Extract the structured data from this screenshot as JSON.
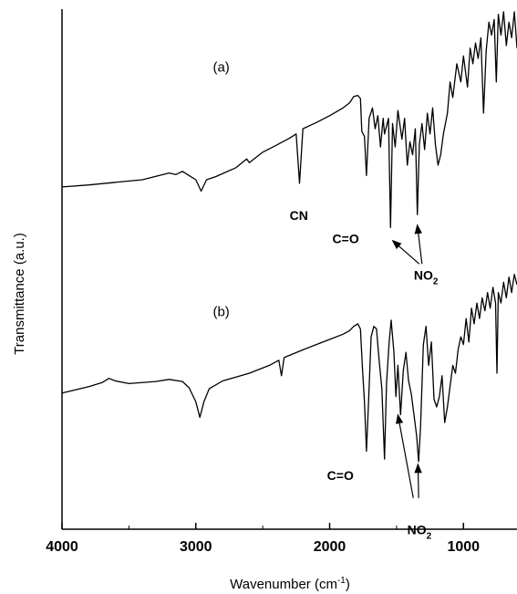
{
  "chart_data": {
    "type": "line",
    "title": "",
    "xlabel": "Wavenumber (cm",
    "xlabel_sup": "-1",
    "xlabel_close": ")",
    "ylabel": "Transmittance (a.u.)",
    "xlim": [
      4000,
      600
    ],
    "ylim": [
      0,
      10
    ],
    "x_reversed": true,
    "x_ticks": [
      4000,
      3000,
      2000,
      1000
    ],
    "y_ticks_shown": false,
    "line_color": "#000000",
    "series": [
      {
        "label": "(a)",
        "label_position": [
          2810,
          8.8
        ],
        "points": [
          [
            4000,
            6.58
          ],
          [
            3800,
            6.62
          ],
          [
            3600,
            6.67
          ],
          [
            3400,
            6.72
          ],
          [
            3200,
            6.85
          ],
          [
            3150,
            6.82
          ],
          [
            3100,
            6.88
          ],
          [
            3050,
            6.8
          ],
          [
            3000,
            6.72
          ],
          [
            2960,
            6.5
          ],
          [
            2920,
            6.72
          ],
          [
            2850,
            6.78
          ],
          [
            2700,
            6.95
          ],
          [
            2620,
            7.12
          ],
          [
            2600,
            7.05
          ],
          [
            2500,
            7.25
          ],
          [
            2400,
            7.38
          ],
          [
            2300,
            7.52
          ],
          [
            2250,
            7.6
          ],
          [
            2225,
            6.65
          ],
          [
            2200,
            7.7
          ],
          [
            2100,
            7.82
          ],
          [
            2000,
            7.95
          ],
          [
            1900,
            8.1
          ],
          [
            1850,
            8.2
          ],
          [
            1820,
            8.32
          ],
          [
            1790,
            8.34
          ],
          [
            1770,
            8.28
          ],
          [
            1760,
            7.65
          ],
          [
            1740,
            7.55
          ],
          [
            1725,
            6.8
          ],
          [
            1705,
            7.9
          ],
          [
            1680,
            8.1
          ],
          [
            1660,
            7.7
          ],
          [
            1640,
            7.95
          ],
          [
            1620,
            7.35
          ],
          [
            1600,
            7.9
          ],
          [
            1590,
            7.6
          ],
          [
            1560,
            7.9
          ],
          [
            1545,
            5.8
          ],
          [
            1530,
            7.8
          ],
          [
            1510,
            7.35
          ],
          [
            1490,
            8.05
          ],
          [
            1460,
            7.5
          ],
          [
            1440,
            7.9
          ],
          [
            1420,
            7.0
          ],
          [
            1400,
            7.45
          ],
          [
            1380,
            7.2
          ],
          [
            1360,
            7.7
          ],
          [
            1345,
            6.05
          ],
          [
            1330,
            7.4
          ],
          [
            1310,
            7.8
          ],
          [
            1290,
            7.3
          ],
          [
            1270,
            8.0
          ],
          [
            1250,
            7.6
          ],
          [
            1230,
            8.1
          ],
          [
            1210,
            7.4
          ],
          [
            1190,
            7.0
          ],
          [
            1170,
            7.2
          ],
          [
            1150,
            7.6
          ],
          [
            1120,
            8.0
          ],
          [
            1100,
            8.6
          ],
          [
            1080,
            8.3
          ],
          [
            1050,
            8.95
          ],
          [
            1020,
            8.6
          ],
          [
            1000,
            9.1
          ],
          [
            970,
            8.5
          ],
          [
            950,
            9.25
          ],
          [
            930,
            8.95
          ],
          [
            910,
            9.35
          ],
          [
            890,
            9.05
          ],
          [
            870,
            9.45
          ],
          [
            850,
            8.0
          ],
          [
            830,
            9.2
          ],
          [
            810,
            9.75
          ],
          [
            790,
            9.5
          ],
          [
            770,
            9.8
          ],
          [
            755,
            8.6
          ],
          [
            740,
            9.9
          ],
          [
            720,
            9.5
          ],
          [
            700,
            9.95
          ],
          [
            680,
            9.3
          ],
          [
            660,
            9.75
          ],
          [
            640,
            9.45
          ],
          [
            620,
            9.95
          ],
          [
            600,
            9.25
          ]
        ]
      },
      {
        "label": "(b)",
        "label_position": [
          2810,
          4.1
        ],
        "points": [
          [
            4000,
            2.62
          ],
          [
            3900,
            2.68
          ],
          [
            3800,
            2.74
          ],
          [
            3700,
            2.82
          ],
          [
            3650,
            2.9
          ],
          [
            3600,
            2.85
          ],
          [
            3500,
            2.8
          ],
          [
            3300,
            2.84
          ],
          [
            3200,
            2.88
          ],
          [
            3100,
            2.84
          ],
          [
            3050,
            2.72
          ],
          [
            3000,
            2.45
          ],
          [
            2970,
            2.15
          ],
          [
            2940,
            2.45
          ],
          [
            2900,
            2.7
          ],
          [
            2800,
            2.85
          ],
          [
            2600,
            3.0
          ],
          [
            2450,
            3.15
          ],
          [
            2380,
            3.25
          ],
          [
            2360,
            2.95
          ],
          [
            2340,
            3.3
          ],
          [
            2200,
            3.45
          ],
          [
            2100,
            3.55
          ],
          [
            2000,
            3.65
          ],
          [
            1900,
            3.75
          ],
          [
            1850,
            3.82
          ],
          [
            1820,
            3.9
          ],
          [
            1790,
            3.95
          ],
          [
            1770,
            3.85
          ],
          [
            1755,
            3.1
          ],
          [
            1740,
            2.45
          ],
          [
            1725,
            1.5
          ],
          [
            1710,
            2.4
          ],
          [
            1690,
            3.7
          ],
          [
            1670,
            3.9
          ],
          [
            1650,
            3.85
          ],
          [
            1630,
            3.25
          ],
          [
            1610,
            2.7
          ],
          [
            1590,
            1.35
          ],
          [
            1575,
            2.8
          ],
          [
            1555,
            3.6
          ],
          [
            1540,
            4.02
          ],
          [
            1520,
            3.4
          ],
          [
            1505,
            2.55
          ],
          [
            1490,
            3.15
          ],
          [
            1470,
            2.2
          ],
          [
            1450,
            3.05
          ],
          [
            1430,
            3.4
          ],
          [
            1410,
            2.85
          ],
          [
            1390,
            2.6
          ],
          [
            1370,
            2.2
          ],
          [
            1350,
            1.8
          ],
          [
            1335,
            1.3
          ],
          [
            1320,
            2.0
          ],
          [
            1300,
            3.55
          ],
          [
            1280,
            3.9
          ],
          [
            1260,
            3.15
          ],
          [
            1240,
            3.6
          ],
          [
            1220,
            2.5
          ],
          [
            1200,
            2.35
          ],
          [
            1180,
            2.55
          ],
          [
            1160,
            2.95
          ],
          [
            1140,
            2.05
          ],
          [
            1120,
            2.35
          ],
          [
            1100,
            2.75
          ],
          [
            1080,
            3.15
          ],
          [
            1060,
            3.0
          ],
          [
            1040,
            3.45
          ],
          [
            1020,
            3.7
          ],
          [
            1000,
            3.55
          ],
          [
            980,
            4.05
          ],
          [
            960,
            3.6
          ],
          [
            940,
            4.25
          ],
          [
            920,
            3.95
          ],
          [
            900,
            4.35
          ],
          [
            880,
            4.05
          ],
          [
            860,
            4.45
          ],
          [
            840,
            4.2
          ],
          [
            820,
            4.55
          ],
          [
            800,
            4.25
          ],
          [
            780,
            4.65
          ],
          [
            760,
            4.35
          ],
          [
            750,
            3.0
          ],
          [
            740,
            4.55
          ],
          [
            720,
            4.35
          ],
          [
            700,
            4.75
          ],
          [
            680,
            4.45
          ],
          [
            660,
            4.85
          ],
          [
            640,
            4.55
          ],
          [
            620,
            4.9
          ],
          [
            600,
            4.7
          ]
        ]
      }
    ],
    "annotations": [
      {
        "text": "CN",
        "position": [
          2230,
          5.95
        ],
        "arrows": []
      },
      {
        "text": "C=O",
        "position": [
          1880,
          5.5
        ],
        "arrows": []
      },
      {
        "text": "NO",
        "sub": "2",
        "position": [
          1280,
          4.8
        ],
        "arrows": [
          {
            "from": [
              1330,
              5.1
            ],
            "to": [
              1530,
              5.55
            ]
          },
          {
            "from": [
              1310,
              5.1
            ],
            "to": [
              1345,
              5.85
            ]
          }
        ]
      },
      {
        "text": "C=O",
        "position": [
          1920,
          0.95
        ],
        "arrows": []
      },
      {
        "text": "NO",
        "sub": "2",
        "position": [
          1330,
          -0.1
        ],
        "arrows": [
          {
            "from": [
              1375,
              0.6
            ],
            "to": [
              1490,
              2.2
            ]
          },
          {
            "from": [
              1335,
              0.6
            ],
            "to": [
              1340,
              1.25
            ]
          }
        ]
      }
    ]
  }
}
